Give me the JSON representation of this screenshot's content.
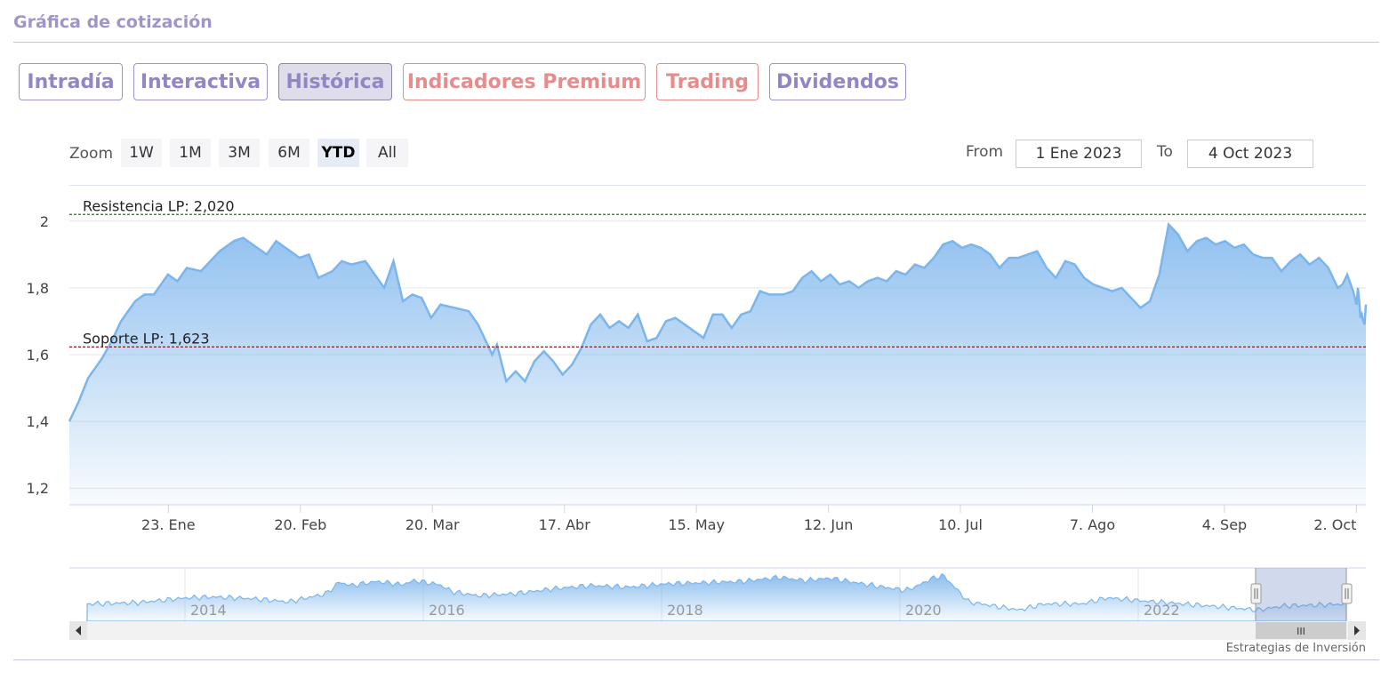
{
  "page": {
    "title": "Gráfica de cotización"
  },
  "tabs": [
    {
      "label": "Intradía",
      "state": "normal"
    },
    {
      "label": "Interactiva",
      "state": "normal"
    },
    {
      "label": "Histórica",
      "state": "active"
    },
    {
      "label": "Indicadores Premium",
      "state": "premium"
    },
    {
      "label": "Trading",
      "state": "premium"
    },
    {
      "label": "Dividendos",
      "state": "normal"
    }
  ],
  "zoom": {
    "label": "Zoom",
    "buttons": [
      "1W",
      "1M",
      "3M",
      "6M",
      "YTD",
      "All"
    ],
    "selected": "YTD"
  },
  "range": {
    "from_label": "From",
    "from_value": "1 Ene 2023",
    "to_label": "To",
    "to_value": "4 Oct 2023"
  },
  "colors": {
    "accent": "#9f95c9",
    "premium": "#e58d8d",
    "line": "#7cb5ec",
    "resistance": "#1f7a1f",
    "support": "#8b1a1a"
  },
  "chart_data": {
    "type": "area",
    "ylim": [
      1.15,
      2.05
    ],
    "yticks": [
      {
        "v": 1.2,
        "label": "1,2"
      },
      {
        "v": 1.4,
        "label": "1,4"
      },
      {
        "v": 1.6,
        "label": "1,6"
      },
      {
        "v": 1.8,
        "label": "1,8"
      },
      {
        "v": 2.0,
        "label": "2"
      }
    ],
    "xlim": [
      "2023-01-02",
      "2023-10-04"
    ],
    "xticks": [
      {
        "date": "2023-01-23",
        "label": "23. Ene"
      },
      {
        "date": "2023-02-20",
        "label": "20. Feb"
      },
      {
        "date": "2023-03-20",
        "label": "20. Mar"
      },
      {
        "date": "2023-04-17",
        "label": "17. Abr"
      },
      {
        "date": "2023-05-15",
        "label": "15. May"
      },
      {
        "date": "2023-06-12",
        "label": "12. Jun"
      },
      {
        "date": "2023-07-10",
        "label": "10. Jul"
      },
      {
        "date": "2023-08-07",
        "label": "7. Ago"
      },
      {
        "date": "2023-09-04",
        "label": "4. Sep"
      },
      {
        "date": "2023-10-02",
        "label": "2. Oct"
      }
    ],
    "plot_lines": [
      {
        "label": "Resistencia LP: 2,020",
        "value": 2.02,
        "color": "#1f7a1f"
      },
      {
        "label": "Soporte LP: 1,623",
        "value": 1.623,
        "color": "#8b1a1a"
      }
    ],
    "points": [
      [
        "2023-01-02",
        1.4
      ],
      [
        "2023-01-04",
        1.46
      ],
      [
        "2023-01-06",
        1.53
      ],
      [
        "2023-01-09",
        1.59
      ],
      [
        "2023-01-11",
        1.64
      ],
      [
        "2023-01-13",
        1.7
      ],
      [
        "2023-01-16",
        1.76
      ],
      [
        "2023-01-18",
        1.78
      ],
      [
        "2023-01-20",
        1.78
      ],
      [
        "2023-01-23",
        1.84
      ],
      [
        "2023-01-25",
        1.82
      ],
      [
        "2023-01-27",
        1.86
      ],
      [
        "2023-01-30",
        1.85
      ],
      [
        "2023-02-01",
        1.88
      ],
      [
        "2023-02-03",
        1.91
      ],
      [
        "2023-02-06",
        1.94
      ],
      [
        "2023-02-08",
        1.95
      ],
      [
        "2023-02-10",
        1.93
      ],
      [
        "2023-02-13",
        1.9
      ],
      [
        "2023-02-15",
        1.94
      ],
      [
        "2023-02-17",
        1.92
      ],
      [
        "2023-02-20",
        1.89
      ],
      [
        "2023-02-22",
        1.9
      ],
      [
        "2023-02-24",
        1.83
      ],
      [
        "2023-02-27",
        1.85
      ],
      [
        "2023-03-01",
        1.88
      ],
      [
        "2023-03-03",
        1.87
      ],
      [
        "2023-03-06",
        1.88
      ],
      [
        "2023-03-08",
        1.84
      ],
      [
        "2023-03-10",
        1.8
      ],
      [
        "2023-03-12",
        1.88
      ],
      [
        "2023-03-14",
        1.76
      ],
      [
        "2023-03-16",
        1.78
      ],
      [
        "2023-03-18",
        1.77
      ],
      [
        "2023-03-20",
        1.71
      ],
      [
        "2023-03-22",
        1.75
      ],
      [
        "2023-03-25",
        1.74
      ],
      [
        "2023-03-28",
        1.73
      ],
      [
        "2023-03-30",
        1.69
      ],
      [
        "2023-04-02",
        1.6
      ],
      [
        "2023-04-03",
        1.63
      ],
      [
        "2023-04-05",
        1.52
      ],
      [
        "2023-04-07",
        1.55
      ],
      [
        "2023-04-09",
        1.52
      ],
      [
        "2023-04-11",
        1.58
      ],
      [
        "2023-04-13",
        1.61
      ],
      [
        "2023-04-15",
        1.58
      ],
      [
        "2023-04-17",
        1.54
      ],
      [
        "2023-04-19",
        1.57
      ],
      [
        "2023-04-21",
        1.62
      ],
      [
        "2023-04-23",
        1.69
      ],
      [
        "2023-04-25",
        1.72
      ],
      [
        "2023-04-27",
        1.68
      ],
      [
        "2023-04-29",
        1.7
      ],
      [
        "2023-05-01",
        1.68
      ],
      [
        "2023-05-03",
        1.72
      ],
      [
        "2023-05-05",
        1.64
      ],
      [
        "2023-05-07",
        1.65
      ],
      [
        "2023-05-09",
        1.7
      ],
      [
        "2023-05-11",
        1.71
      ],
      [
        "2023-05-13",
        1.69
      ],
      [
        "2023-05-15",
        1.67
      ],
      [
        "2023-05-17",
        1.65
      ],
      [
        "2023-05-19",
        1.72
      ],
      [
        "2023-05-21",
        1.72
      ],
      [
        "2023-05-23",
        1.68
      ],
      [
        "2023-05-25",
        1.72
      ],
      [
        "2023-05-27",
        1.73
      ],
      [
        "2023-05-29",
        1.79
      ],
      [
        "2023-05-31",
        1.78
      ],
      [
        "2023-06-03",
        1.78
      ],
      [
        "2023-06-05",
        1.79
      ],
      [
        "2023-06-07",
        1.83
      ],
      [
        "2023-06-09",
        1.85
      ],
      [
        "2023-06-11",
        1.82
      ],
      [
        "2023-06-13",
        1.84
      ],
      [
        "2023-06-15",
        1.81
      ],
      [
        "2023-06-17",
        1.82
      ],
      [
        "2023-06-19",
        1.8
      ],
      [
        "2023-06-21",
        1.82
      ],
      [
        "2023-06-23",
        1.83
      ],
      [
        "2023-06-25",
        1.82
      ],
      [
        "2023-06-27",
        1.85
      ],
      [
        "2023-06-29",
        1.84
      ],
      [
        "2023-07-01",
        1.87
      ],
      [
        "2023-07-03",
        1.86
      ],
      [
        "2023-07-05",
        1.89
      ],
      [
        "2023-07-07",
        1.93
      ],
      [
        "2023-07-09",
        1.94
      ],
      [
        "2023-07-11",
        1.92
      ],
      [
        "2023-07-13",
        1.93
      ],
      [
        "2023-07-15",
        1.92
      ],
      [
        "2023-07-17",
        1.9
      ],
      [
        "2023-07-19",
        1.86
      ],
      [
        "2023-07-21",
        1.89
      ],
      [
        "2023-07-23",
        1.89
      ],
      [
        "2023-07-25",
        1.9
      ],
      [
        "2023-07-27",
        1.91
      ],
      [
        "2023-07-29",
        1.86
      ],
      [
        "2023-07-31",
        1.83
      ],
      [
        "2023-08-02",
        1.88
      ],
      [
        "2023-08-04",
        1.87
      ],
      [
        "2023-08-06",
        1.83
      ],
      [
        "2023-08-08",
        1.81
      ],
      [
        "2023-08-10",
        1.8
      ],
      [
        "2023-08-12",
        1.79
      ],
      [
        "2023-08-14",
        1.8
      ],
      [
        "2023-08-16",
        1.77
      ],
      [
        "2023-08-18",
        1.74
      ],
      [
        "2023-08-20",
        1.76
      ],
      [
        "2023-08-22",
        1.84
      ],
      [
        "2023-08-24",
        1.99
      ],
      [
        "2023-08-26",
        1.96
      ],
      [
        "2023-08-28",
        1.91
      ],
      [
        "2023-08-30",
        1.94
      ],
      [
        "2023-09-01",
        1.95
      ],
      [
        "2023-09-03",
        1.93
      ],
      [
        "2023-09-05",
        1.94
      ],
      [
        "2023-09-07",
        1.92
      ],
      [
        "2023-09-09",
        1.93
      ],
      [
        "2023-09-11",
        1.9
      ],
      [
        "2023-09-13",
        1.89
      ],
      [
        "2023-09-15",
        1.89
      ],
      [
        "2023-09-17",
        1.85
      ],
      [
        "2023-09-19",
        1.88
      ],
      [
        "2023-09-21",
        1.9
      ],
      [
        "2023-09-23",
        1.87
      ],
      [
        "2023-09-25",
        1.89
      ],
      [
        "2023-09-27",
        1.86
      ],
      [
        "2023-09-29",
        1.8
      ],
      [
        "2023-09-30",
        1.81
      ],
      [
        "2023-10-01",
        1.84
      ],
      [
        "2023-10-02",
        1.8
      ],
      [
        "2023-10-02",
        1.79
      ],
      [
        "2023-10-03",
        1.75
      ],
      [
        "2023-10-03",
        1.8
      ],
      [
        "2023-10-03",
        1.76
      ],
      [
        "2023-10-03",
        1.71
      ],
      [
        "2023-10-03",
        1.72
      ],
      [
        "2023-10-04",
        1.7
      ],
      [
        "2023-10-04",
        1.69
      ],
      [
        "2023-10-04",
        1.75
      ]
    ]
  },
  "navigator": {
    "ticks": [
      "2014",
      "2016",
      "2018",
      "2020",
      "2022"
    ],
    "scrollbar_grip": "III"
  },
  "credit": "Estrategias de Inversión"
}
